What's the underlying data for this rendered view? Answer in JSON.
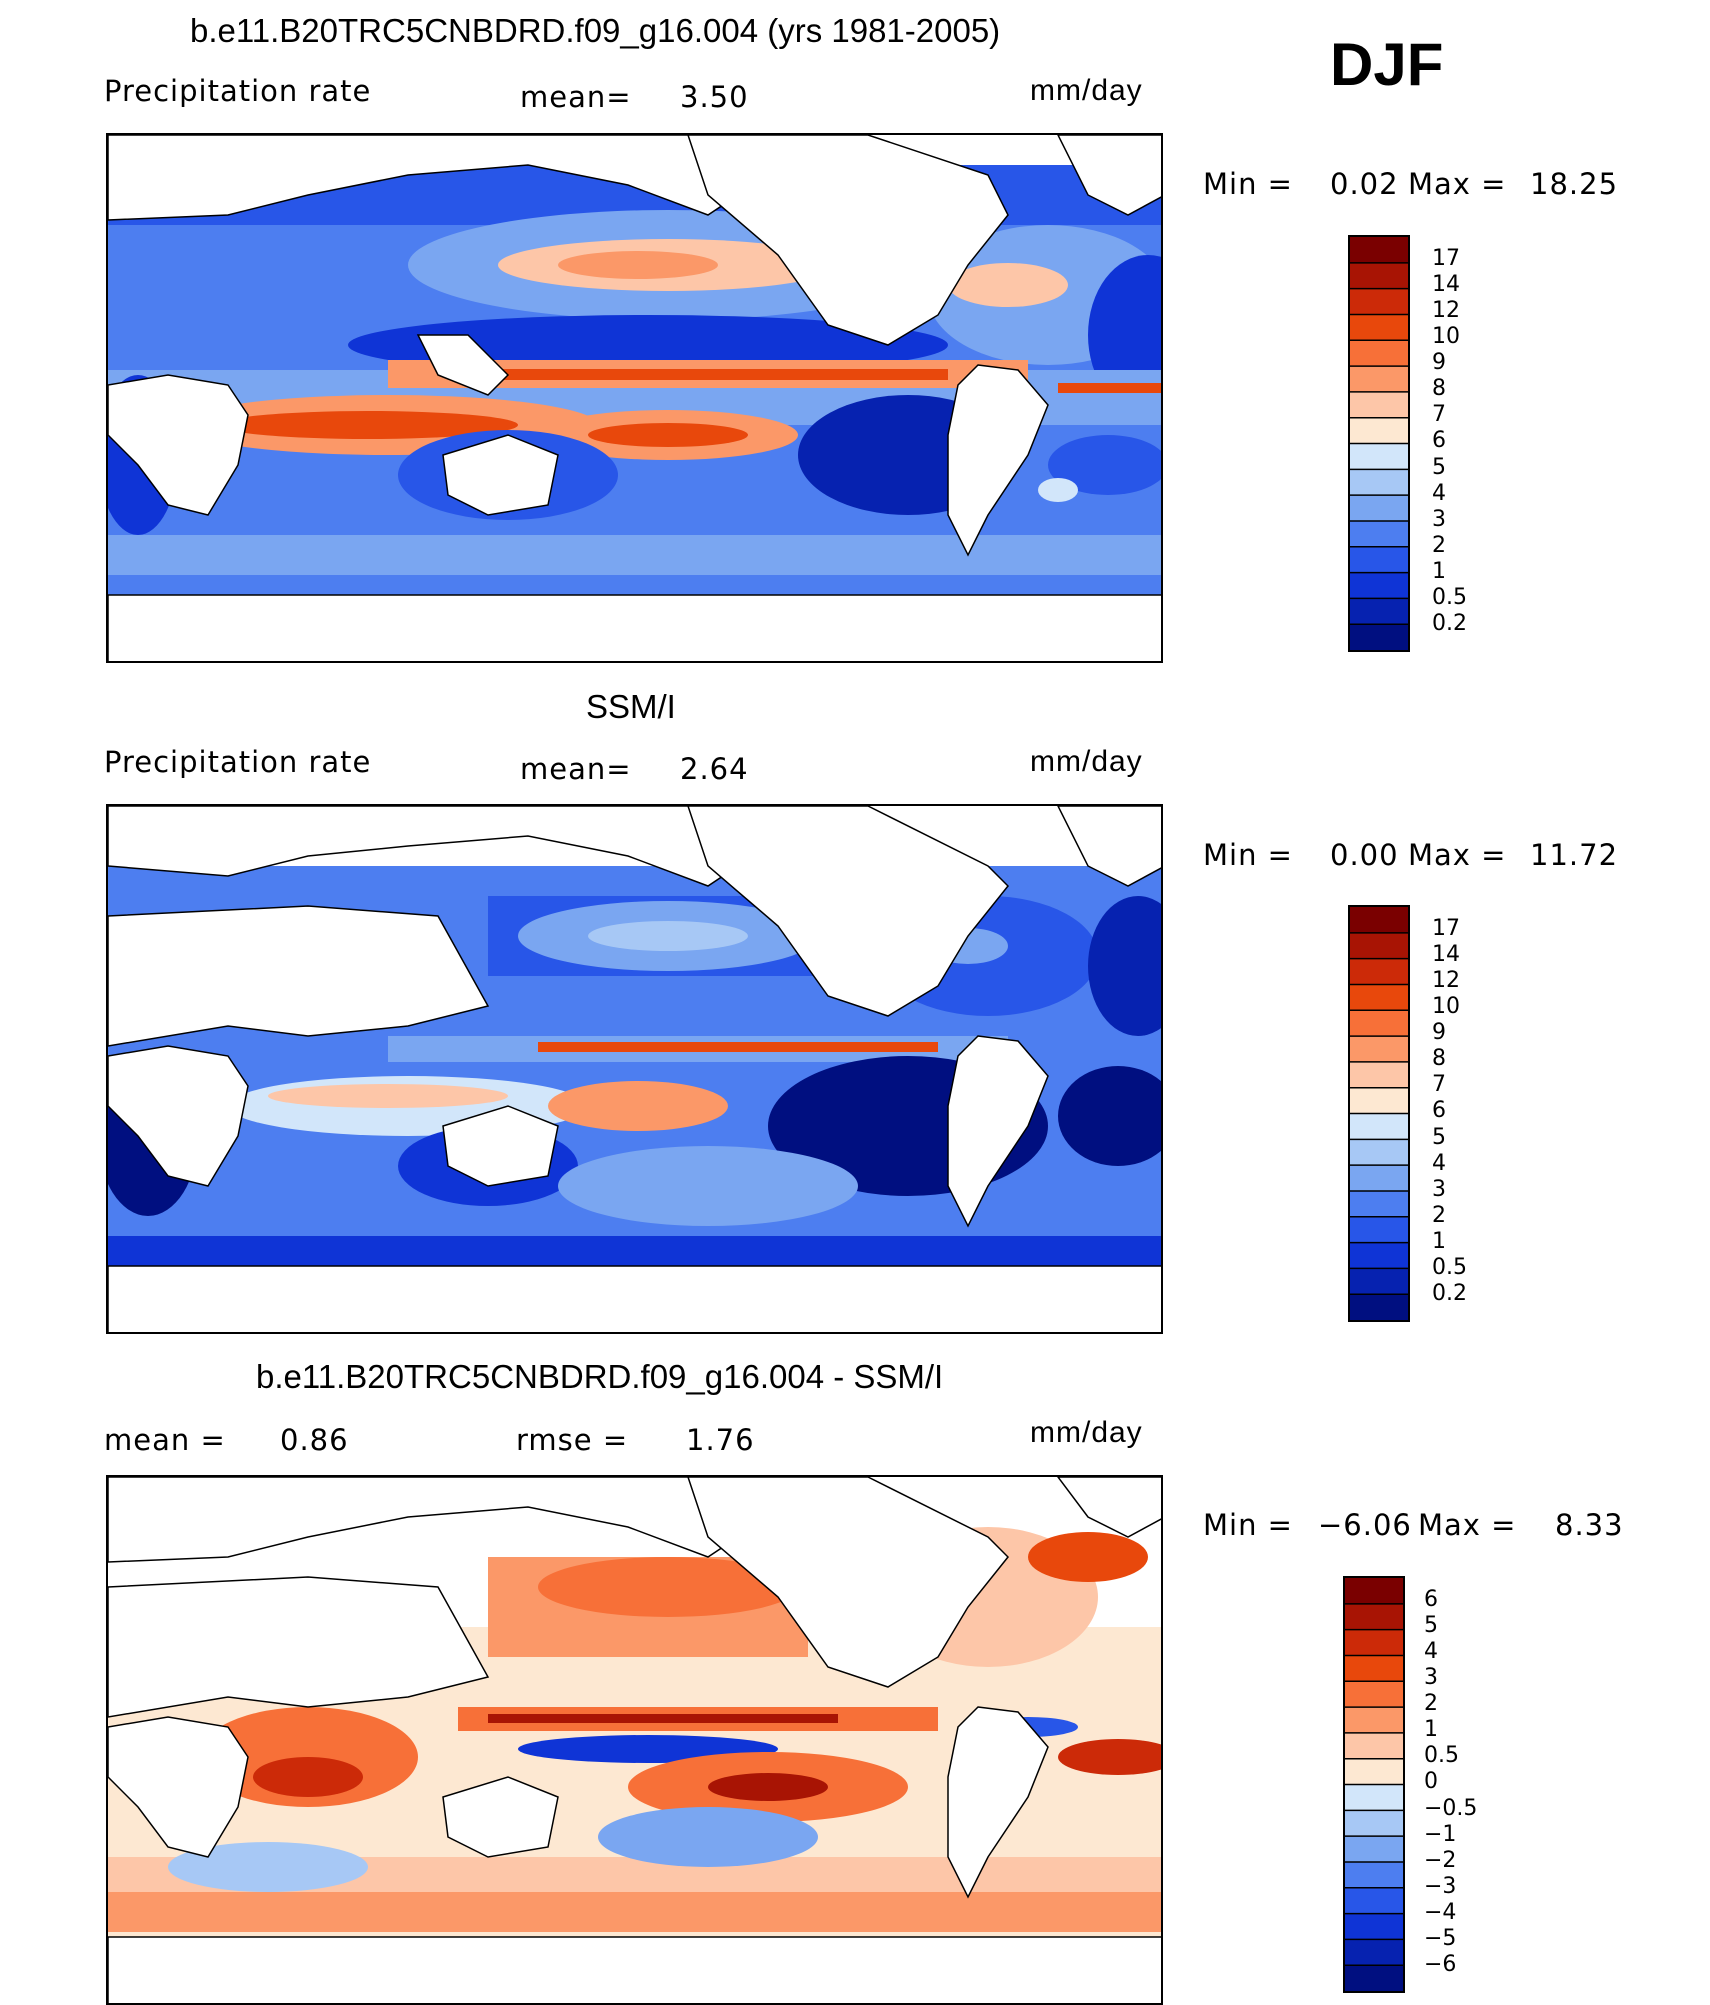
{
  "season": "DJF",
  "panels": [
    {
      "id": "model",
      "title": "b.e11.B20TRC5CNBDRD.f09_g16.004 (yrs 1981-2005)",
      "left_label": "Precipitation rate",
      "center_label": "mean=",
      "center_value": "3.50",
      "units": "mm/day",
      "min_label": "Min =",
      "min_value": "0.02",
      "max_label": "Max =",
      "max_value": "18.25",
      "colorbar_ticks": [
        "17",
        "14",
        "12",
        "10",
        "9",
        "8",
        "7",
        "6",
        "5",
        "4",
        "3",
        "2",
        "1",
        "0.5",
        "0.2"
      ]
    },
    {
      "id": "obs",
      "title": "SSM/I",
      "left_label": "Precipitation rate",
      "center_label": "mean=",
      "center_value": "2.64",
      "units": "mm/day",
      "min_label": "Min =",
      "min_value": "0.00",
      "max_label": "Max =",
      "max_value": "11.72",
      "colorbar_ticks": [
        "17",
        "14",
        "12",
        "10",
        "9",
        "8",
        "7",
        "6",
        "5",
        "4",
        "3",
        "2",
        "1",
        "0.5",
        "0.2"
      ]
    },
    {
      "id": "diff",
      "title": "b.e11.B20TRC5CNBDRD.f09_g16.004 - SSM/I",
      "left_label": "mean =",
      "left_value": "0.86",
      "center_label": "rmse =",
      "center_value": "1.76",
      "units": "mm/day",
      "min_label": "Min =",
      "min_value": "−6.06",
      "max_label": "Max =",
      "max_value": "8.33",
      "colorbar_ticks": [
        "6",
        "5",
        "4",
        "3",
        "2",
        "1",
        "0.5",
        "0",
        "−0.5",
        "−1",
        "−2",
        "−3",
        "−4",
        "−5",
        "−6"
      ]
    }
  ],
  "palettes": {
    "precip": [
      "#7a0000",
      "#a81404",
      "#cc2a08",
      "#e8480c",
      "#f77038",
      "#fb9868",
      "#fdc6a8",
      "#fde8d2",
      "#d2e6fa",
      "#a7c8f5",
      "#7aa6f1",
      "#4d7ef0",
      "#2856e8",
      "#0f34d6",
      "#0622b0",
      "#000f80"
    ],
    "diff": [
      "#7a0000",
      "#a81404",
      "#cc2a08",
      "#e8480c",
      "#f77038",
      "#fb9868",
      "#fdc6a8",
      "#fde8d2",
      "#d2e6fa",
      "#a7c8f5",
      "#7aa6f1",
      "#4d7ef0",
      "#2856e8",
      "#0f34d6",
      "#0622b0",
      "#000f80"
    ]
  }
}
